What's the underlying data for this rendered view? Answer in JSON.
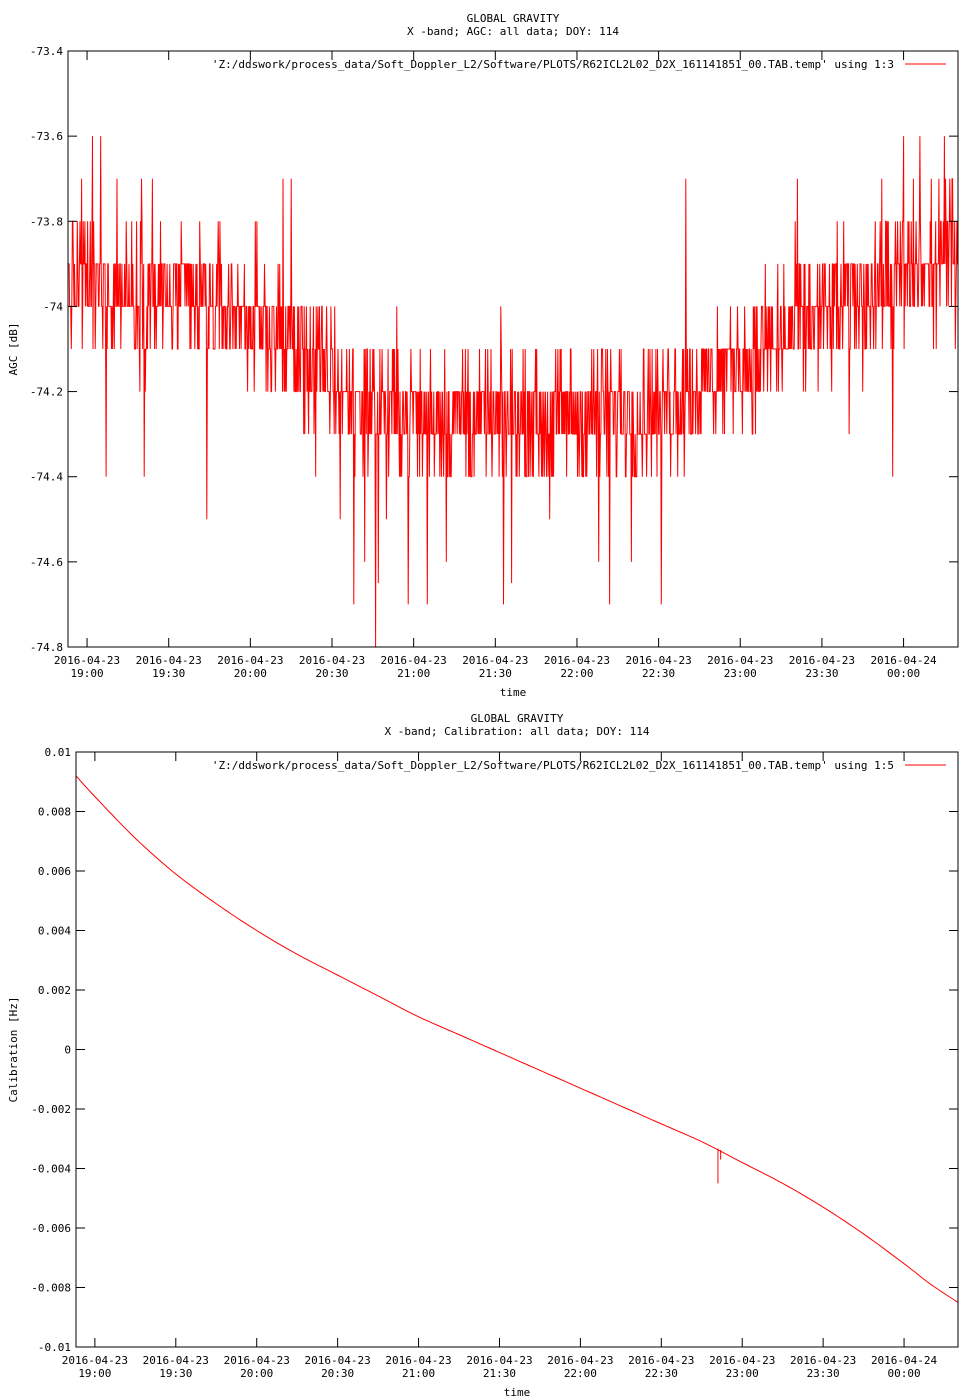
{
  "accent_color": "#ff0000",
  "chart_data": [
    {
      "type": "line",
      "title": "GLOBAL GRAVITY",
      "subtitle": "X -band; AGC: all data; DOY: 114",
      "xlabel": "time",
      "ylabel": "AGC [dB]",
      "ylim": [
        -74.8,
        -73.4
      ],
      "yticks": [
        {
          "value": -73.4,
          "label": "-73.4"
        },
        {
          "value": -73.6,
          "label": "-73.6"
        },
        {
          "value": -73.8,
          "label": "-73.8"
        },
        {
          "value": -74.0,
          "label": "-74"
        },
        {
          "value": -74.2,
          "label": "-74.2"
        },
        {
          "value": -74.4,
          "label": "-74.4"
        },
        {
          "value": -74.6,
          "label": "-74.6"
        },
        {
          "value": -74.8,
          "label": "-74.8"
        }
      ],
      "xlim": [
        "2016-04-23 18:53",
        "2016-04-24 00:20"
      ],
      "xticks": [
        {
          "value": "2016-04-23 19:00",
          "date": "2016-04-23",
          "time": "19:00"
        },
        {
          "value": "2016-04-23 19:30",
          "date": "2016-04-23",
          "time": "19:30"
        },
        {
          "value": "2016-04-23 20:00",
          "date": "2016-04-23",
          "time": "20:00"
        },
        {
          "value": "2016-04-23 20:30",
          "date": "2016-04-23",
          "time": "20:30"
        },
        {
          "value": "2016-04-23 21:00",
          "date": "2016-04-23",
          "time": "21:00"
        },
        {
          "value": "2016-04-23 21:30",
          "date": "2016-04-23",
          "time": "21:30"
        },
        {
          "value": "2016-04-23 22:00",
          "date": "2016-04-23",
          "time": "22:00"
        },
        {
          "value": "2016-04-23 22:30",
          "date": "2016-04-23",
          "time": "22:30"
        },
        {
          "value": "2016-04-23 23:00",
          "date": "2016-04-23",
          "time": "23:00"
        },
        {
          "value": "2016-04-23 23:30",
          "date": "2016-04-23",
          "time": "23:30"
        },
        {
          "value": "2016-04-24 00:00",
          "date": "2016-04-24",
          "time": "00:00"
        }
      ],
      "legend": {
        "label": "'Z:/ddswork/process_data/Soft_Doppler_L2/Software/PLOTS/R62ICL2L02_D2X_161141851_00.TAB.temp' using 1:3",
        "position": "top-right"
      },
      "grid": false,
      "series": [
        {
          "name": "'Z:/ddswork/process_data/Soft_Doppler_L2/Software/PLOTS/R62ICL2L02_D2X_161141851_00.TAB.temp' using 1:3",
          "color": "#ff0000",
          "style": "noisy",
          "sample_step_seconds": 12,
          "resolution_db": 0.1,
          "trend": [
            {
              "x": "2016-04-23 18:53",
              "y": -73.95
            },
            {
              "x": "2016-04-23 19:30",
              "y": -73.98
            },
            {
              "x": "2016-04-23 20:00",
              "y": -74.02
            },
            {
              "x": "2016-04-23 20:20",
              "y": -74.12
            },
            {
              "x": "2016-04-23 20:40",
              "y": -74.22
            },
            {
              "x": "2016-04-23 21:00",
              "y": -74.25
            },
            {
              "x": "2016-04-23 21:30",
              "y": -74.26
            },
            {
              "x": "2016-04-23 22:00",
              "y": -74.26
            },
            {
              "x": "2016-04-23 22:30",
              "y": -74.23
            },
            {
              "x": "2016-04-23 23:00",
              "y": -74.13
            },
            {
              "x": "2016-04-23 23:30",
              "y": -74.02
            },
            {
              "x": "2016-04-24 00:00",
              "y": -73.93
            },
            {
              "x": "2016-04-24 00:20",
              "y": -73.88
            }
          ],
          "spikes": [
            {
              "x": "2016-04-23 18:58",
              "y": -73.7
            },
            {
              "x": "2016-04-23 19:02",
              "y": -73.6
            },
            {
              "x": "2016-04-23 19:05",
              "y": -73.6
            },
            {
              "x": "2016-04-23 19:07",
              "y": -74.4
            },
            {
              "x": "2016-04-23 19:11",
              "y": -73.7
            },
            {
              "x": "2016-04-23 19:20",
              "y": -73.7
            },
            {
              "x": "2016-04-23 19:21",
              "y": -74.4
            },
            {
              "x": "2016-04-23 19:24",
              "y": -73.7
            },
            {
              "x": "2016-04-23 19:44",
              "y": -74.5
            },
            {
              "x": "2016-04-23 20:12",
              "y": -73.7
            },
            {
              "x": "2016-04-23 20:15",
              "y": -73.7
            },
            {
              "x": "2016-04-23 20:24",
              "y": -74.4
            },
            {
              "x": "2016-04-23 20:33",
              "y": -74.5
            },
            {
              "x": "2016-04-23 20:38",
              "y": -74.7
            },
            {
              "x": "2016-04-23 20:42",
              "y": -74.6
            },
            {
              "x": "2016-04-23 20:46",
              "y": -74.8
            },
            {
              "x": "2016-04-23 20:47",
              "y": -74.65
            },
            {
              "x": "2016-04-23 20:50",
              "y": -74.5
            },
            {
              "x": "2016-04-23 20:58",
              "y": -74.7
            },
            {
              "x": "2016-04-23 21:05",
              "y": -74.7
            },
            {
              "x": "2016-04-23 21:12",
              "y": -74.6
            },
            {
              "x": "2016-04-23 21:33",
              "y": -74.7
            },
            {
              "x": "2016-04-23 21:36",
              "y": -74.65
            },
            {
              "x": "2016-04-23 21:50",
              "y": -74.5
            },
            {
              "x": "2016-04-23 22:08",
              "y": -74.6
            },
            {
              "x": "2016-04-23 22:12",
              "y": -74.7
            },
            {
              "x": "2016-04-23 22:20",
              "y": -74.6
            },
            {
              "x": "2016-04-23 22:31",
              "y": -74.7
            },
            {
              "x": "2016-04-23 22:40",
              "y": -73.7
            },
            {
              "x": "2016-04-23 23:21",
              "y": -73.7
            },
            {
              "x": "2016-04-23 23:40",
              "y": -74.3
            },
            {
              "x": "2016-04-23 23:52",
              "y": -73.7
            },
            {
              "x": "2016-04-23 23:56",
              "y": -74.4
            },
            {
              "x": "2016-04-24 00:00",
              "y": -73.6
            },
            {
              "x": "2016-04-24 00:06",
              "y": -73.6
            },
            {
              "x": "2016-04-24 00:11",
              "y": -74.1
            },
            {
              "x": "2016-04-24 00:13",
              "y": -73.7
            },
            {
              "x": "2016-04-24 00:15",
              "y": -73.6
            },
            {
              "x": "2016-04-24 00:18",
              "y": -73.7
            }
          ]
        }
      ]
    },
    {
      "type": "line",
      "title": "GLOBAL GRAVITY",
      "subtitle": "X -band; Calibration: all data; DOY: 114",
      "xlabel": "time",
      "ylabel": "Calibration [Hz]",
      "ylim": [
        -0.01,
        0.01
      ],
      "yticks": [
        {
          "value": 0.01,
          "label": "0.01"
        },
        {
          "value": 0.008,
          "label": "0.008"
        },
        {
          "value": 0.006,
          "label": "0.006"
        },
        {
          "value": 0.004,
          "label": "0.004"
        },
        {
          "value": 0.002,
          "label": "0.002"
        },
        {
          "value": 0,
          "label": "0"
        },
        {
          "value": -0.002,
          "label": "-0.002"
        },
        {
          "value": -0.004,
          "label": "-0.004"
        },
        {
          "value": -0.006,
          "label": "-0.006"
        },
        {
          "value": -0.008,
          "label": "-0.008"
        },
        {
          "value": -0.01,
          "label": "-0.01"
        }
      ],
      "xlim": [
        "2016-04-23 18:53",
        "2016-04-24 00:20"
      ],
      "xticks": [
        {
          "value": "2016-04-23 19:00",
          "date": "2016-04-23",
          "time": "19:00"
        },
        {
          "value": "2016-04-23 19:30",
          "date": "2016-04-23",
          "time": "19:30"
        },
        {
          "value": "2016-04-23 20:00",
          "date": "2016-04-23",
          "time": "20:00"
        },
        {
          "value": "2016-04-23 20:30",
          "date": "2016-04-23",
          "time": "20:30"
        },
        {
          "value": "2016-04-23 21:00",
          "date": "2016-04-23",
          "time": "21:00"
        },
        {
          "value": "2016-04-23 21:30",
          "date": "2016-04-23",
          "time": "21:30"
        },
        {
          "value": "2016-04-23 22:00",
          "date": "2016-04-23",
          "time": "22:00"
        },
        {
          "value": "2016-04-23 22:30",
          "date": "2016-04-23",
          "time": "22:30"
        },
        {
          "value": "2016-04-23 23:00",
          "date": "2016-04-23",
          "time": "23:00"
        },
        {
          "value": "2016-04-23 23:30",
          "date": "2016-04-23",
          "time": "23:30"
        },
        {
          "value": "2016-04-24 00:00",
          "date": "2016-04-24",
          "time": "00:00"
        }
      ],
      "legend": {
        "label": "'Z:/ddswork/process_data/Soft_Doppler_L2/Software/PLOTS/R62ICL2L02_D2X_161141851_00.TAB.temp' using 1:5",
        "position": "top-right"
      },
      "grid": false,
      "series": [
        {
          "name": "'Z:/ddswork/process_data/Soft_Doppler_L2/Software/PLOTS/R62ICL2L02_D2X_161141851_00.TAB.temp' using 1:5",
          "color": "#ff0000",
          "style": "smooth",
          "points": [
            {
              "x": "2016-04-23 18:53",
              "y": 0.0092
            },
            {
              "x": "2016-04-23 19:00",
              "y": 0.0085
            },
            {
              "x": "2016-04-23 19:15",
              "y": 0.0071
            },
            {
              "x": "2016-04-23 19:30",
              "y": 0.0059
            },
            {
              "x": "2016-04-23 19:45",
              "y": 0.0049
            },
            {
              "x": "2016-04-23 20:00",
              "y": 0.004
            },
            {
              "x": "2016-04-23 20:15",
              "y": 0.0032
            },
            {
              "x": "2016-04-23 20:30",
              "y": 0.0025
            },
            {
              "x": "2016-04-23 20:45",
              "y": 0.0018
            },
            {
              "x": "2016-04-23 21:00",
              "y": 0.0011
            },
            {
              "x": "2016-04-23 21:15",
              "y": 0.0005
            },
            {
              "x": "2016-04-23 21:30",
              "y": -0.0001
            },
            {
              "x": "2016-04-23 21:45",
              "y": -0.0007
            },
            {
              "x": "2016-04-23 22:00",
              "y": -0.0013
            },
            {
              "x": "2016-04-23 22:15",
              "y": -0.0019
            },
            {
              "x": "2016-04-23 22:30",
              "y": -0.0025
            },
            {
              "x": "2016-04-23 22:45",
              "y": -0.0031
            },
            {
              "x": "2016-04-23 23:00",
              "y": -0.0038
            },
            {
              "x": "2016-04-23 23:15",
              "y": -0.0045
            },
            {
              "x": "2016-04-23 23:30",
              "y": -0.0053
            },
            {
              "x": "2016-04-23 23:45",
              "y": -0.0062
            },
            {
              "x": "2016-04-24 00:00",
              "y": -0.0072
            },
            {
              "x": "2016-04-24 00:10",
              "y": -0.0079
            },
            {
              "x": "2016-04-24 00:20",
              "y": -0.0085
            }
          ],
          "glitches": [
            {
              "x": "2016-04-23 22:51",
              "y": -0.0045
            },
            {
              "x": "2016-04-23 22:52",
              "y": -0.0037
            }
          ]
        }
      ]
    }
  ]
}
